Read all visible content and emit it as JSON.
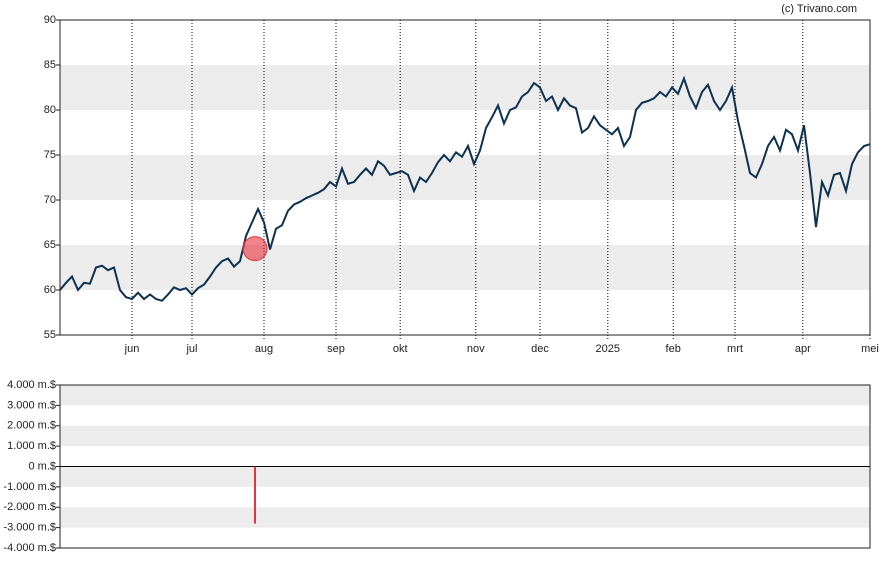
{
  "chart_data": [
    {
      "type": "line",
      "credit": "(c) Trivano.com",
      "xlim": [
        0,
        135
      ],
      "xticks": [
        {
          "value": 12,
          "label": "jun"
        },
        {
          "value": 22,
          "label": "jul"
        },
        {
          "value": 34,
          "label": "aug"
        },
        {
          "value": 46,
          "label": "sep"
        },
        {
          "value": 56.7,
          "label": "okt"
        },
        {
          "value": 69.3,
          "label": "nov"
        },
        {
          "value": 80,
          "label": "dec"
        },
        {
          "value": 91.3,
          "label": "2025"
        },
        {
          "value": 102.2,
          "label": "feb"
        },
        {
          "value": 112.5,
          "label": "mrt"
        },
        {
          "value": 123.8,
          "label": "apr"
        },
        {
          "value": 135,
          "label": "mei"
        }
      ],
      "ylim": [
        55,
        90
      ],
      "yticks": [
        55,
        60,
        65,
        70,
        75,
        80,
        85,
        90
      ],
      "series": [
        {
          "color": "#0d3150",
          "values": [
            60,
            60.8,
            61.5,
            60,
            60.8,
            60.7,
            62.5,
            62.7,
            62.2,
            62.5,
            60,
            59.2,
            59,
            59.7,
            59,
            59.5,
            59,
            58.8,
            59.5,
            60.3,
            60,
            60.2,
            59.5,
            60.2,
            60.6,
            61.5,
            62.5,
            63.2,
            63.5,
            62.6,
            63.2,
            66,
            67.5,
            69,
            67.5,
            64.5,
            66.8,
            67.2,
            68.8,
            69.5,
            69.8,
            70.2,
            70.5,
            70.8,
            71.2,
            72,
            71.5,
            73.5,
            71.8,
            72,
            72.8,
            73.5,
            72.8,
            74.3,
            73.8,
            72.8,
            73,
            73.2,
            72.8,
            71,
            72.5,
            72,
            73,
            74.2,
            75,
            74.3,
            75.3,
            74.8,
            76,
            74,
            75.5,
            78,
            79.2,
            80.5,
            78.5,
            80,
            80.3,
            81.5,
            82,
            83,
            82.5,
            81,
            81.5,
            80,
            81.3,
            80.5,
            80.2,
            77.5,
            78,
            79.3,
            78.3,
            77.8,
            77.3,
            78,
            76,
            77,
            80,
            80.8,
            81,
            81.3,
            82,
            81.5,
            82.5,
            81.8,
            83.5,
            81.5,
            80.2,
            82,
            82.8,
            81,
            80,
            81,
            82.5,
            78.8,
            76,
            73,
            72.5,
            74,
            76,
            77,
            75.5,
            77.8,
            77.3,
            75.5,
            78.3,
            73,
            67,
            72,
            70.5,
            72.8,
            73,
            71,
            74,
            75.3,
            76,
            76.2
          ]
        }
      ],
      "markers": [
        {
          "x": 32.5,
          "y": 64.6,
          "color": "#e8323c"
        }
      ]
    },
    {
      "type": "bar",
      "xlim": [
        0,
        135
      ],
      "ylim": [
        -4000,
        4000
      ],
      "yticks": [
        {
          "value": 4000,
          "label": "4.000 m.$"
        },
        {
          "value": 3000,
          "label": "3.000 m.$"
        },
        {
          "value": 2000,
          "label": "2.000 m.$"
        },
        {
          "value": 1000,
          "label": "1.000 m.$"
        },
        {
          "value": 0,
          "label": "0 m.$"
        },
        {
          "value": -1000,
          "label": "-1.000 m.$"
        },
        {
          "value": -2000,
          "label": "-2.000 m.$"
        },
        {
          "value": -3000,
          "label": "-3.000 m.$"
        },
        {
          "value": -4000,
          "label": "-4.000 m.$"
        }
      ],
      "x": [
        32.5
      ],
      "values": [
        -2800
      ],
      "color": "#e8323c"
    }
  ]
}
